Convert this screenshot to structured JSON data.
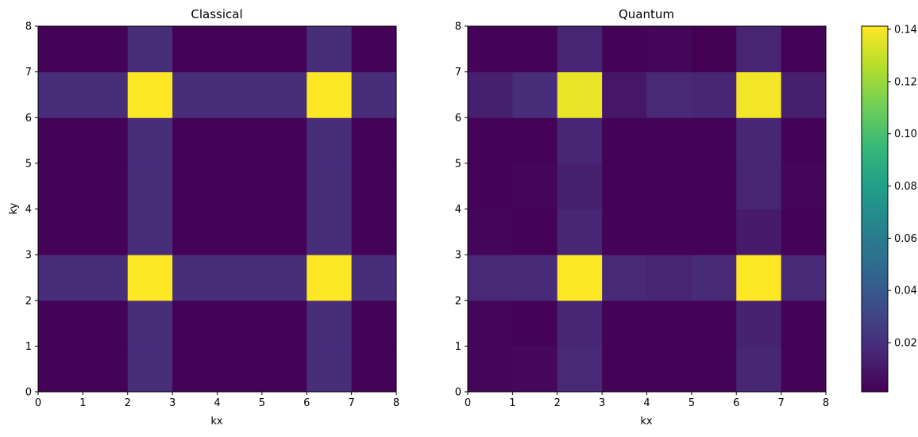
{
  "chart_data": [
    {
      "type": "heatmap",
      "title": "Classical",
      "xlabel": "kx",
      "ylabel": "ky",
      "xlim": [
        0,
        8
      ],
      "ylim": [
        0,
        8
      ],
      "x_ticks": [
        "0",
        "1",
        "2",
        "3",
        "4",
        "5",
        "6",
        "7",
        "8"
      ],
      "y_ticks": [
        "0",
        "1",
        "2",
        "3",
        "4",
        "5",
        "6",
        "7",
        "8"
      ],
      "row_order": "ky from 0 (bottom) to 7 (top); columns kx from 0 to 7",
      "values": [
        [
          0.002,
          0.002,
          0.019,
          0.002,
          0.002,
          0.002,
          0.019,
          0.002
        ],
        [
          0.002,
          0.002,
          0.019,
          0.002,
          0.002,
          0.002,
          0.019,
          0.002
        ],
        [
          0.019,
          0.019,
          0.141,
          0.019,
          0.019,
          0.019,
          0.141,
          0.019
        ],
        [
          0.002,
          0.002,
          0.019,
          0.002,
          0.002,
          0.002,
          0.019,
          0.002
        ],
        [
          0.002,
          0.002,
          0.019,
          0.002,
          0.002,
          0.002,
          0.019,
          0.002
        ],
        [
          0.002,
          0.002,
          0.019,
          0.002,
          0.002,
          0.002,
          0.019,
          0.002
        ],
        [
          0.019,
          0.019,
          0.141,
          0.019,
          0.019,
          0.019,
          0.141,
          0.019
        ],
        [
          0.002,
          0.002,
          0.019,
          0.002,
          0.002,
          0.002,
          0.019,
          0.002
        ]
      ]
    },
    {
      "type": "heatmap",
      "title": "Quantum",
      "xlabel": "kx",
      "ylabel": "",
      "xlim": [
        0,
        8
      ],
      "ylim": [
        0,
        8
      ],
      "x_ticks": [
        "0",
        "1",
        "2",
        "3",
        "4",
        "5",
        "6",
        "7",
        "8"
      ],
      "y_ticks": [
        "0",
        "1",
        "2",
        "3",
        "4",
        "5",
        "6",
        "7",
        "8"
      ],
      "row_order": "ky from 0 (bottom) to 7 (top); columns kx from 0 to 7",
      "values": [
        [
          0.003,
          0.004,
          0.017,
          0.002,
          0.002,
          0.002,
          0.016,
          0.002
        ],
        [
          0.003,
          0.002,
          0.016,
          0.002,
          0.002,
          0.002,
          0.014,
          0.002
        ],
        [
          0.017,
          0.018,
          0.141,
          0.017,
          0.015,
          0.018,
          0.141,
          0.017
        ],
        [
          0.003,
          0.002,
          0.016,
          0.002,
          0.002,
          0.002,
          0.011,
          0.002
        ],
        [
          0.002,
          0.003,
          0.013,
          0.002,
          0.002,
          0.002,
          0.015,
          0.003
        ],
        [
          0.002,
          0.002,
          0.016,
          0.002,
          0.002,
          0.002,
          0.016,
          0.002
        ],
        [
          0.013,
          0.019,
          0.137,
          0.01,
          0.017,
          0.016,
          0.139,
          0.013
        ],
        [
          0.002,
          0.002,
          0.015,
          0.002,
          0.003,
          0.001,
          0.015,
          0.002
        ]
      ]
    }
  ],
  "colorbar": {
    "colormap": "viridis",
    "vmin": 0.0012,
    "vmax": 0.1412,
    "ticks": [
      0.02,
      0.04,
      0.06,
      0.08,
      0.1,
      0.12,
      0.14
    ],
    "tick_labels": [
      "0.02",
      "0.04",
      "0.06",
      "0.08",
      "0.10",
      "0.12",
      "0.14"
    ]
  }
}
